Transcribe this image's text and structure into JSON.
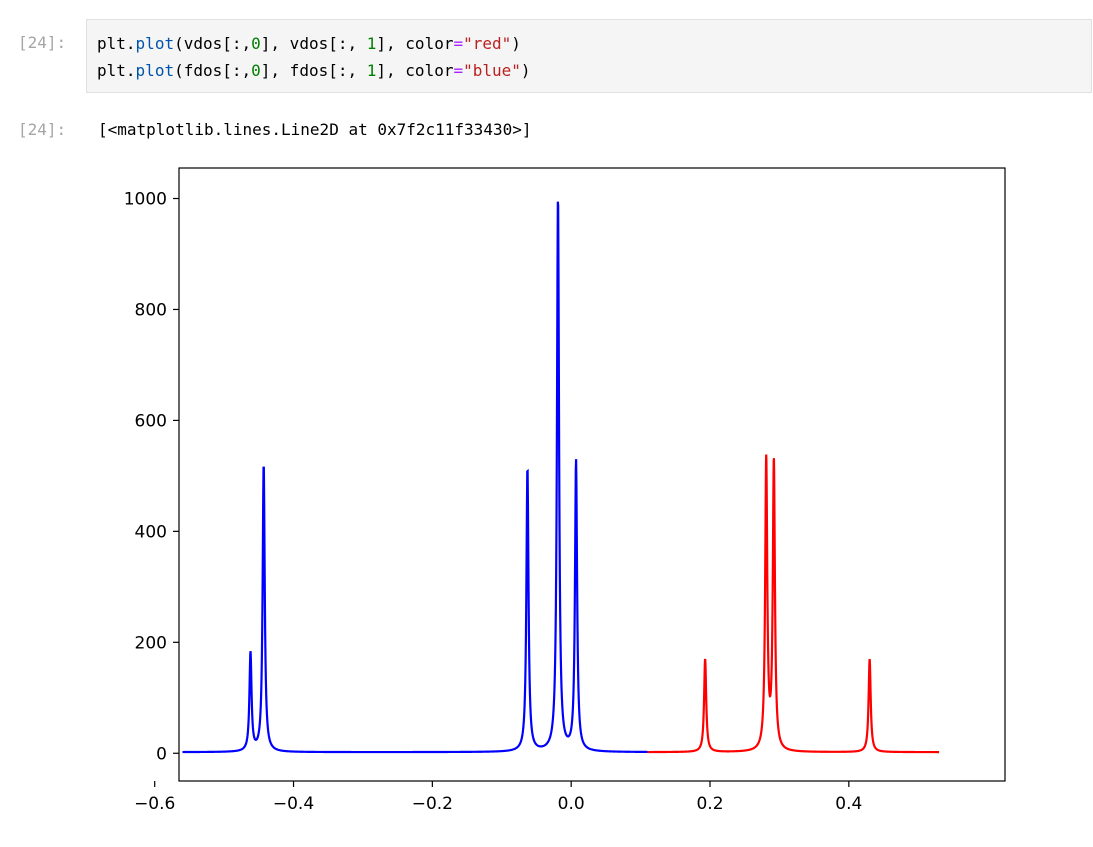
{
  "input_cell": {
    "prompt": "[24]:",
    "lines": [
      [
        {
          "t": "plt",
          "c": "plain"
        },
        {
          "t": ".",
          "c": "plain"
        },
        {
          "t": "plot",
          "c": "func"
        },
        {
          "t": "(vdos[:,",
          "c": "plain"
        },
        {
          "t": "0",
          "c": "num"
        },
        {
          "t": "], vdos[:, ",
          "c": "plain"
        },
        {
          "t": "1",
          "c": "num"
        },
        {
          "t": "], ",
          "c": "plain"
        },
        {
          "t": "color",
          "c": "plain"
        },
        {
          "t": "=",
          "c": "kw"
        },
        {
          "t": "\"red\"",
          "c": "str"
        },
        {
          "t": ")",
          "c": "plain"
        }
      ],
      [
        {
          "t": "plt",
          "c": "plain"
        },
        {
          "t": ".",
          "c": "plain"
        },
        {
          "t": "plot",
          "c": "func"
        },
        {
          "t": "(fdos[:,",
          "c": "plain"
        },
        {
          "t": "0",
          "c": "num"
        },
        {
          "t": "], fdos[:, ",
          "c": "plain"
        },
        {
          "t": "1",
          "c": "num"
        },
        {
          "t": "], ",
          "c": "plain"
        },
        {
          "t": "color",
          "c": "plain"
        },
        {
          "t": "=",
          "c": "kw"
        },
        {
          "t": "\"blue\"",
          "c": "str"
        },
        {
          "t": ")",
          "c": "plain"
        }
      ]
    ]
  },
  "output_cell": {
    "prompt": "[24]:",
    "text": "[<matplotlib.lines.Line2D at 0x7f2c11f33430>]"
  },
  "chart_data": {
    "type": "line",
    "title": "",
    "xlabel": "",
    "ylabel": "",
    "xlim": [
      -0.565,
      0.625
    ],
    "ylim": [
      -50,
      1055
    ],
    "x_ticks": [
      -0.6,
      -0.4,
      -0.2,
      0.0,
      0.2,
      0.4
    ],
    "x_tick_labels": [
      "−0.6",
      "−0.4",
      "−0.2",
      "0.0",
      "0.2",
      "0.4"
    ],
    "y_ticks": [
      0,
      200,
      400,
      600,
      800,
      1000
    ],
    "y_tick_labels": [
      "0",
      "200",
      "400",
      "600",
      "800",
      "1000"
    ],
    "grid": false,
    "legend": "none",
    "series": [
      {
        "color": "#0000ff",
        "x_range": [
          -0.56,
          0.11
        ],
        "baseline": 2,
        "peaks": [
          {
            "x": -0.462,
            "y": 180
          },
          {
            "x": -0.443,
            "y": 523
          },
          {
            "x": -0.063,
            "y": 515
          },
          {
            "x": -0.019,
            "y": 1005
          },
          {
            "x": 0.007,
            "y": 527
          }
        ]
      },
      {
        "color": "#ff0000",
        "x_range": [
          0.11,
          0.53
        ],
        "baseline": 2,
        "peaks": [
          {
            "x": 0.193,
            "y": 170
          },
          {
            "x": 0.281,
            "y": 525
          },
          {
            "x": 0.292,
            "y": 520
          },
          {
            "x": 0.43,
            "y": 170
          }
        ]
      }
    ]
  }
}
